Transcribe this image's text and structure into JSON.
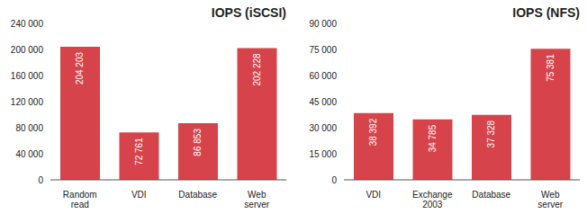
{
  "chart_data": [
    {
      "type": "bar",
      "title": "IOPS (iSCSI)",
      "categories": [
        "Random read",
        "VDI",
        "Database",
        "Web server"
      ],
      "values": [
        204203,
        72761,
        86853,
        202228
      ],
      "value_labels": [
        "204 203",
        "72 761",
        "86 853",
        "202 228"
      ],
      "color": "#d7434a",
      "ylim": [
        0,
        240000
      ],
      "yticks": [
        {
          "value": 0,
          "label": "0"
        },
        {
          "value": 40000,
          "label": "40 000"
        },
        {
          "value": 80000,
          "label": "80 000"
        },
        {
          "value": 120000,
          "label": "120 000"
        },
        {
          "value": 160000,
          "label": "160 000"
        },
        {
          "value": 200000,
          "label": "200 000"
        },
        {
          "value": 240000,
          "label": "240 000"
        }
      ],
      "grid": false,
      "data_labels": true
    },
    {
      "type": "bar",
      "title": "IOPS (NFS)",
      "categories": [
        "VDI",
        "Exchange 2003",
        "Database",
        "Web server"
      ],
      "values": [
        38392,
        34785,
        37328,
        75381
      ],
      "value_labels": [
        "38 392",
        "34 785",
        "37 328",
        "75 381"
      ],
      "color": "#d7434a",
      "ylim": [
        0,
        90000
      ],
      "yticks": [
        {
          "value": 0,
          "label": "0"
        },
        {
          "value": 15000,
          "label": "15 000"
        },
        {
          "value": 30000,
          "label": "30 000"
        },
        {
          "value": 45000,
          "label": "45 000"
        },
        {
          "value": 60000,
          "label": "60 000"
        },
        {
          "value": 75000,
          "label": "75 000"
        },
        {
          "value": 90000,
          "label": "90 000"
        }
      ],
      "grid": false,
      "data_labels": true
    }
  ]
}
